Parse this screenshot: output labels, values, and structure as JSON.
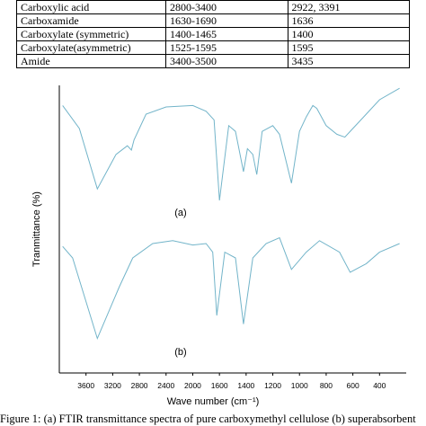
{
  "table": {
    "rows": [
      [
        "Carboxylic acid",
        "2800-3400",
        "2922, 3391"
      ],
      [
        "Carboxamide",
        "1630-1690",
        "1636"
      ],
      [
        "Carboxylate (symmetric)",
        "1400-1465",
        "1400"
      ],
      [
        "Carboxylate(asymmetric)",
        "1525-1595",
        "1595"
      ],
      [
        "Amide",
        "3400-3500",
        "3435"
      ]
    ]
  },
  "chart_data": {
    "type": "line",
    "ylabel": "Tranmittance (%)",
    "xlabel": "Wave number (cm⁻¹)",
    "annotations": [
      "(a)",
      "(b)"
    ],
    "xlim": [
      4000,
      200
    ],
    "xticks": [
      3600,
      3200,
      2800,
      2400,
      2000,
      1600,
      1400,
      1200,
      1000,
      800,
      600,
      400
    ],
    "ylim": [
      0,
      100
    ],
    "series": [
      {
        "color": "#72b4c9",
        "x": [
          3950,
          3700,
          3430,
          3150,
          2980,
          2920,
          2880,
          2700,
          2400,
          2000,
          1800,
          1680,
          1600,
          1530,
          1480,
          1420,
          1390,
          1350,
          1320,
          1280,
          1200,
          1150,
          1060,
          1000,
          950,
          900,
          870,
          800,
          720,
          660,
          600,
          500,
          400,
          250
        ],
        "values": [
          93,
          85,
          64,
          76,
          79,
          77.5,
          81,
          90,
          92.5,
          93,
          91,
          88,
          60,
          86,
          84,
          70,
          78,
          76,
          69,
          84,
          86,
          83,
          66,
          84,
          89,
          93,
          92,
          86,
          83,
          82,
          85,
          90,
          95,
          99
        ]
      },
      {
        "color": "#72b4c9",
        "x": [
          3950,
          3800,
          3430,
          3100,
          2900,
          2600,
          2300,
          2000,
          1800,
          1700,
          1640,
          1560,
          1480,
          1420,
          1350,
          1250,
          1150,
          1060,
          950,
          850,
          700,
          620,
          500,
          400,
          250
        ],
        "values": [
          44,
          40,
          12,
          30,
          40,
          45,
          46,
          44.5,
          45,
          42,
          20,
          42,
          40,
          17,
          40,
          45,
          47,
          36,
          42,
          46,
          42,
          35,
          38,
          42,
          45
        ]
      }
    ]
  },
  "caption": "Figure 1: (a) FTIR transmittance spectra of pure carboxymethyl cellulose (b) superabsorbent"
}
